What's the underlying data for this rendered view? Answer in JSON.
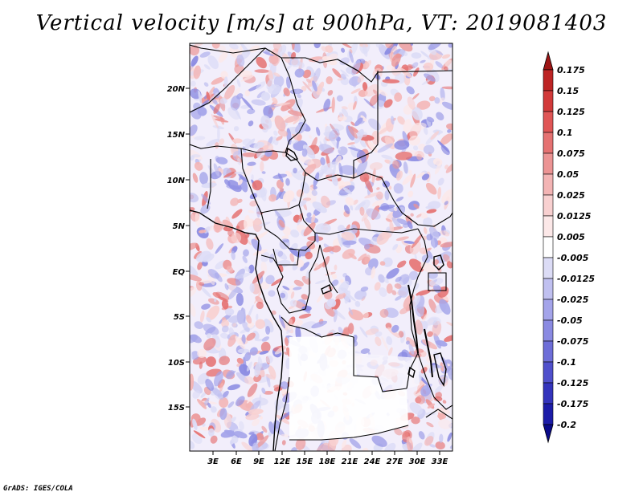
{
  "title": "Vertical velocity [m/s] at 900hPa, VT: 2019081403",
  "footer": "GrADS: IGES/COLA",
  "lat_labels": [
    "20N",
    "15N",
    "10N",
    "5N",
    "EQ",
    "5S",
    "10S",
    "15S"
  ],
  "lon_labels": [
    "3E",
    "6E",
    "9E",
    "12E",
    "15E",
    "18E",
    "21E",
    "24E",
    "27E",
    "30E",
    "33E"
  ],
  "colorbar": {
    "labels": [
      "0.175",
      "0.15",
      "0.125",
      "0.1",
      "0.075",
      "0.05",
      "0.025",
      "0.0125",
      "0.005",
      "-0.005",
      "-0.0125",
      "-0.025",
      "-0.05",
      "-0.075",
      "-0.1",
      "-0.125",
      "-0.175",
      "-0.2"
    ],
    "colors": [
      "#9e1515",
      "#bd2424",
      "#d23a3a",
      "#e05656",
      "#e57272",
      "#ec9494",
      "#f3b4b4",
      "#f8d0d0",
      "#fce8e8",
      "#ffffff",
      "#dcdcf6",
      "#c0c0f0",
      "#a4a4ea",
      "#8a8ae2",
      "#6e6ed8",
      "#5050cc",
      "#3434bc",
      "#1c1ca8",
      "#0a0a8a"
    ]
  }
}
